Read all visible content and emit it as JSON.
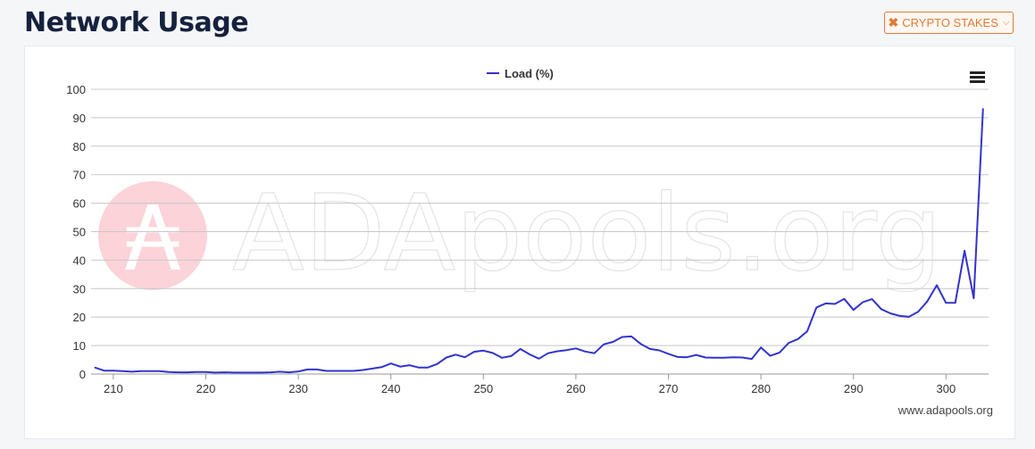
{
  "header": {
    "title": "Network Usage"
  },
  "stake_button": {
    "label": "CRYPTO STAKES",
    "icon": "close-x-icon",
    "accent": "#e07b39"
  },
  "menu": {
    "icon": "hamburger-menu-icon"
  },
  "watermark": {
    "text": "ADApools.org",
    "logo_symbol": "₳",
    "logo_color": "#fbd3d8"
  },
  "credit": "www.adapools.org",
  "chart_data": {
    "type": "line",
    "series": [
      {
        "name": "Load (%)",
        "color": "#3333cc",
        "x": [
          208,
          209,
          210,
          211,
          212,
          213,
          214,
          215,
          216,
          217,
          218,
          219,
          220,
          221,
          222,
          223,
          224,
          225,
          226,
          227,
          228,
          229,
          230,
          231,
          232,
          233,
          234,
          235,
          236,
          237,
          238,
          239,
          240,
          241,
          242,
          243,
          244,
          245,
          246,
          247,
          248,
          249,
          250,
          251,
          252,
          253,
          254,
          255,
          256,
          257,
          258,
          259,
          260,
          261,
          262,
          263,
          264,
          265,
          266,
          267,
          268,
          269,
          270,
          271,
          272,
          273,
          274,
          275,
          276,
          277,
          278,
          279,
          280,
          281,
          282,
          283,
          284,
          285,
          286,
          287,
          288,
          289,
          290,
          291,
          292,
          293,
          294,
          295,
          296,
          297,
          298,
          299,
          300,
          301,
          302,
          303,
          304
        ],
        "values": [
          2.3,
          1.2,
          1.2,
          1.0,
          0.8,
          1.0,
          1.0,
          1.0,
          0.7,
          0.6,
          0.6,
          0.7,
          0.7,
          0.5,
          0.6,
          0.5,
          0.5,
          0.5,
          0.5,
          0.6,
          0.8,
          0.6,
          0.9,
          1.6,
          1.6,
          1.1,
          1.1,
          1.1,
          1.1,
          1.4,
          1.9,
          2.4,
          3.7,
          2.6,
          3.1,
          2.3,
          2.3,
          3.5,
          5.8,
          6.8,
          5.9,
          7.8,
          8.2,
          7.4,
          5.7,
          6.3,
          8.8,
          6.9,
          5.4,
          7.3,
          8.0,
          8.4,
          9.0,
          7.9,
          7.3,
          10.4,
          11.3,
          13.0,
          13.2,
          10.6,
          8.8,
          8.3,
          7.1,
          6.0,
          5.9,
          6.7,
          5.8,
          5.7,
          5.7,
          5.9,
          5.8,
          5.3,
          9.3,
          6.4,
          7.5,
          10.9,
          12.3,
          15.0,
          23.4,
          24.8,
          24.6,
          26.4,
          22.5,
          25.2,
          26.3,
          22.8,
          21.3,
          20.4,
          20.1,
          21.9,
          25.6,
          31.2,
          25.0,
          25.0,
          43.3,
          26.6,
          93.2
        ]
      }
    ],
    "xlim": [
      207.6,
      304.6
    ],
    "ylim": [
      0,
      100
    ],
    "xticks": [
      210,
      220,
      230,
      240,
      250,
      260,
      270,
      280,
      290,
      300
    ],
    "yticks": [
      0,
      10,
      20,
      30,
      40,
      50,
      60,
      70,
      80,
      90,
      100
    ],
    "grid": true,
    "legend": "top-center",
    "title": "",
    "xlabel": "",
    "ylabel": ""
  }
}
